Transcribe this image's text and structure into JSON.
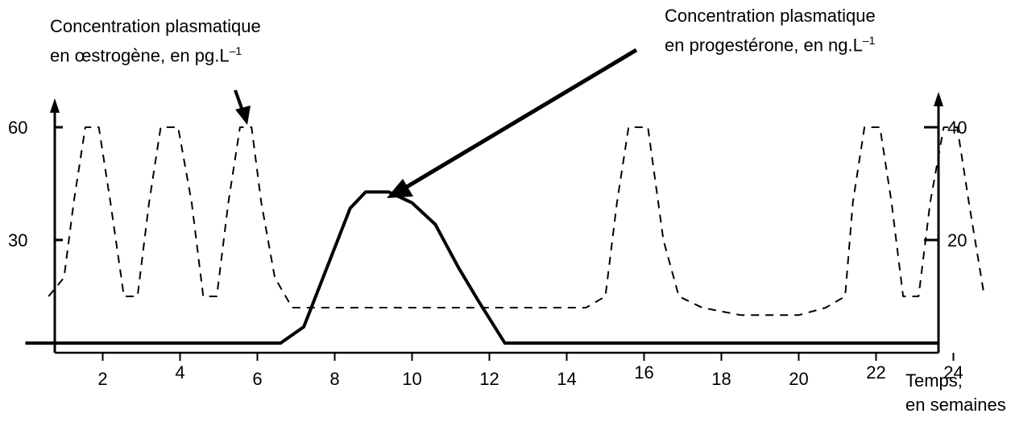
{
  "chart_data": {
    "type": "line",
    "x_ticks": [
      2,
      4,
      6,
      8,
      10,
      12,
      14,
      16,
      18,
      20,
      22,
      24
    ],
    "y_left_ticks": [
      30,
      60
    ],
    "y_right_ticks": [
      20,
      40
    ],
    "estrogen_label": {
      "line1": "Concentration plasmatique",
      "line2": "en œstrogène, en pg.L",
      "sup": "–1"
    },
    "progesterone_label": {
      "line1": "Concentration plasmatique",
      "line2": "en progestérone, en ng.L",
      "sup": "–1"
    },
    "x_label": {
      "line1": "Temps,",
      "line2": "en semaines"
    },
    "series": [
      {
        "key": "estrogen",
        "style": "dashed",
        "axis": "left",
        "points": [
          [
            0.6,
            15
          ],
          [
            1,
            20
          ],
          [
            1.25,
            40
          ],
          [
            1.55,
            60
          ],
          [
            1.9,
            60
          ],
          [
            2.2,
            40
          ],
          [
            2.55,
            15
          ],
          [
            2.9,
            15
          ],
          [
            3.2,
            40
          ],
          [
            3.5,
            60
          ],
          [
            3.95,
            60
          ],
          [
            4.3,
            40
          ],
          [
            4.6,
            15
          ],
          [
            4.95,
            15
          ],
          [
            5.25,
            40
          ],
          [
            5.55,
            60
          ],
          [
            5.85,
            60
          ],
          [
            6.1,
            40
          ],
          [
            6.45,
            20
          ],
          [
            6.9,
            12
          ],
          [
            7.5,
            12
          ],
          [
            9,
            12
          ],
          [
            11,
            12
          ],
          [
            13,
            12
          ],
          [
            14.5,
            12
          ],
          [
            15,
            15
          ],
          [
            15.3,
            40
          ],
          [
            15.6,
            60
          ],
          [
            16.1,
            60
          ],
          [
            16.5,
            30
          ],
          [
            16.9,
            15
          ],
          [
            17.5,
            12
          ],
          [
            18.5,
            10
          ],
          [
            20,
            10
          ],
          [
            20.7,
            12
          ],
          [
            21.2,
            15
          ],
          [
            21.4,
            40
          ],
          [
            21.7,
            60
          ],
          [
            22.1,
            60
          ],
          [
            22.4,
            40
          ],
          [
            22.7,
            15
          ],
          [
            23.1,
            15
          ],
          [
            23.4,
            40
          ],
          [
            23.75,
            60
          ],
          [
            24.1,
            60
          ],
          [
            24.4,
            40
          ],
          [
            24.8,
            15
          ]
        ]
      },
      {
        "key": "progesterone",
        "style": "solid",
        "axis": "right",
        "points": [
          [
            0,
            0
          ],
          [
            6.6,
            0
          ],
          [
            7.2,
            3
          ],
          [
            7.8,
            14
          ],
          [
            8.4,
            25
          ],
          [
            8.8,
            28
          ],
          [
            9.4,
            28
          ],
          [
            10,
            26
          ],
          [
            10.6,
            22
          ],
          [
            11.2,
            14
          ],
          [
            11.7,
            8
          ],
          [
            12.4,
            0
          ],
          [
            25,
            0
          ]
        ]
      }
    ],
    "xlim": [
      0,
      25
    ],
    "ylim_left": [
      0,
      60
    ],
    "ylim_right": [
      0,
      40
    ],
    "colors": {
      "line": "#000000",
      "axis": "#000000"
    }
  }
}
